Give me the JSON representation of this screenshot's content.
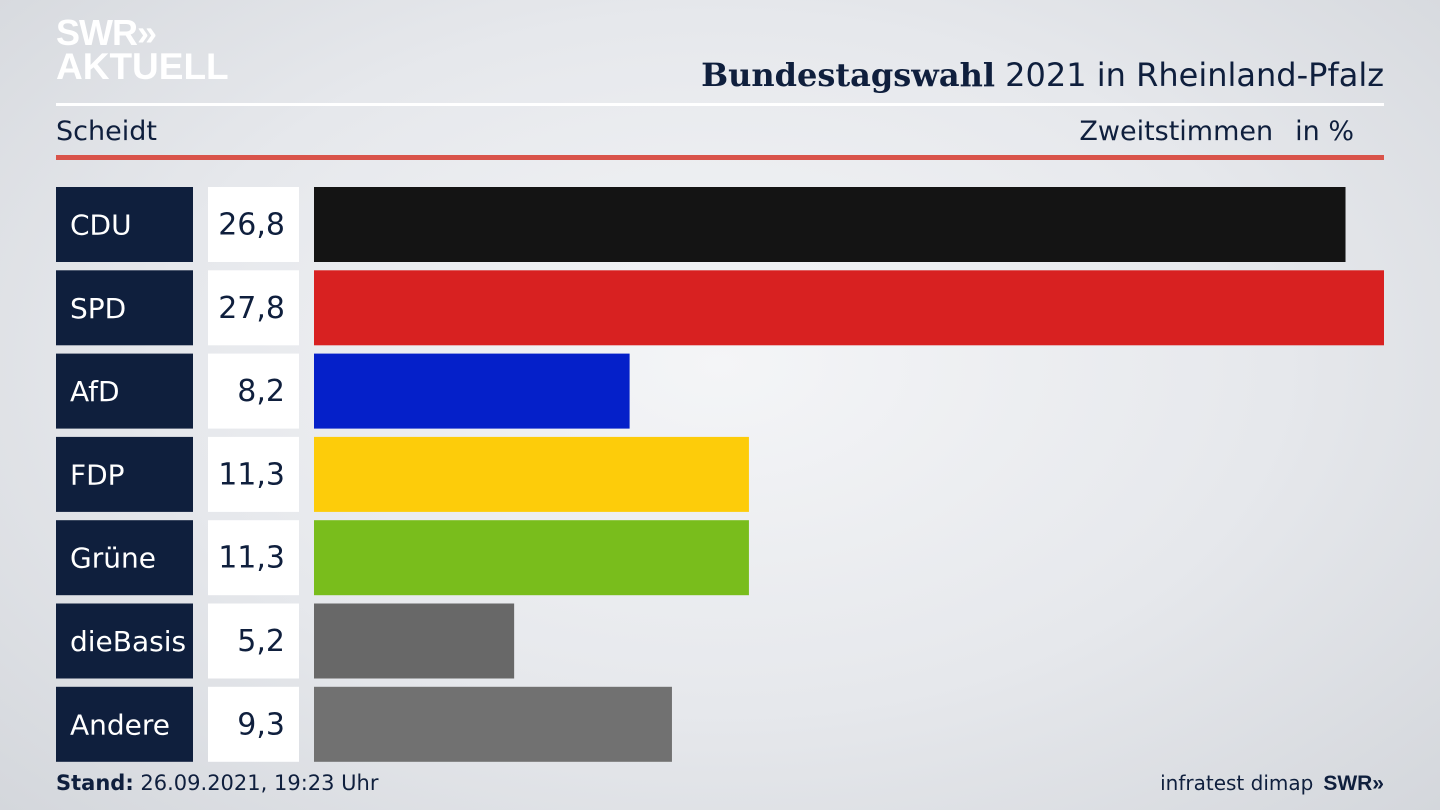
{
  "brand": {
    "logo_line1": "SWR»",
    "logo_line2": "AKTUELL"
  },
  "header": {
    "title_bold": "Bundestagswahl",
    "title_rest": " 2021 in Rheinland-Pfalz",
    "subtitle_left": "Scheidt",
    "subtitle_right_a": "Zweitstimmen",
    "subtitle_right_b": "in %"
  },
  "footer": {
    "stand_label": "Stand:",
    "stand_value": " 26.09.2021, 19:23 Uhr",
    "source": "infratest dimap",
    "source_logo": "SWR»"
  },
  "colors": {
    "label_box": "#0f1f3d",
    "value_box": "#ffffff",
    "accent_red": "#d9534a"
  },
  "chart_data": {
    "type": "bar",
    "orientation": "horizontal",
    "categories": [
      "CDU",
      "SPD",
      "AfD",
      "FDP",
      "Grüne",
      "dieBasis",
      "Andere"
    ],
    "values": [
      26.8,
      27.8,
      8.2,
      11.3,
      11.3,
      5.2,
      9.3
    ],
    "value_labels": [
      "26,8",
      "27,8",
      "8,2",
      "11,3",
      "11,3",
      "5,2",
      "9,3"
    ],
    "bar_colors": [
      "#141414",
      "#d82121",
      "#0520c9",
      "#fdcc0a",
      "#79bd1c",
      "#686868",
      "#717171"
    ],
    "xlim": [
      0,
      27.8
    ],
    "unit": "%"
  }
}
